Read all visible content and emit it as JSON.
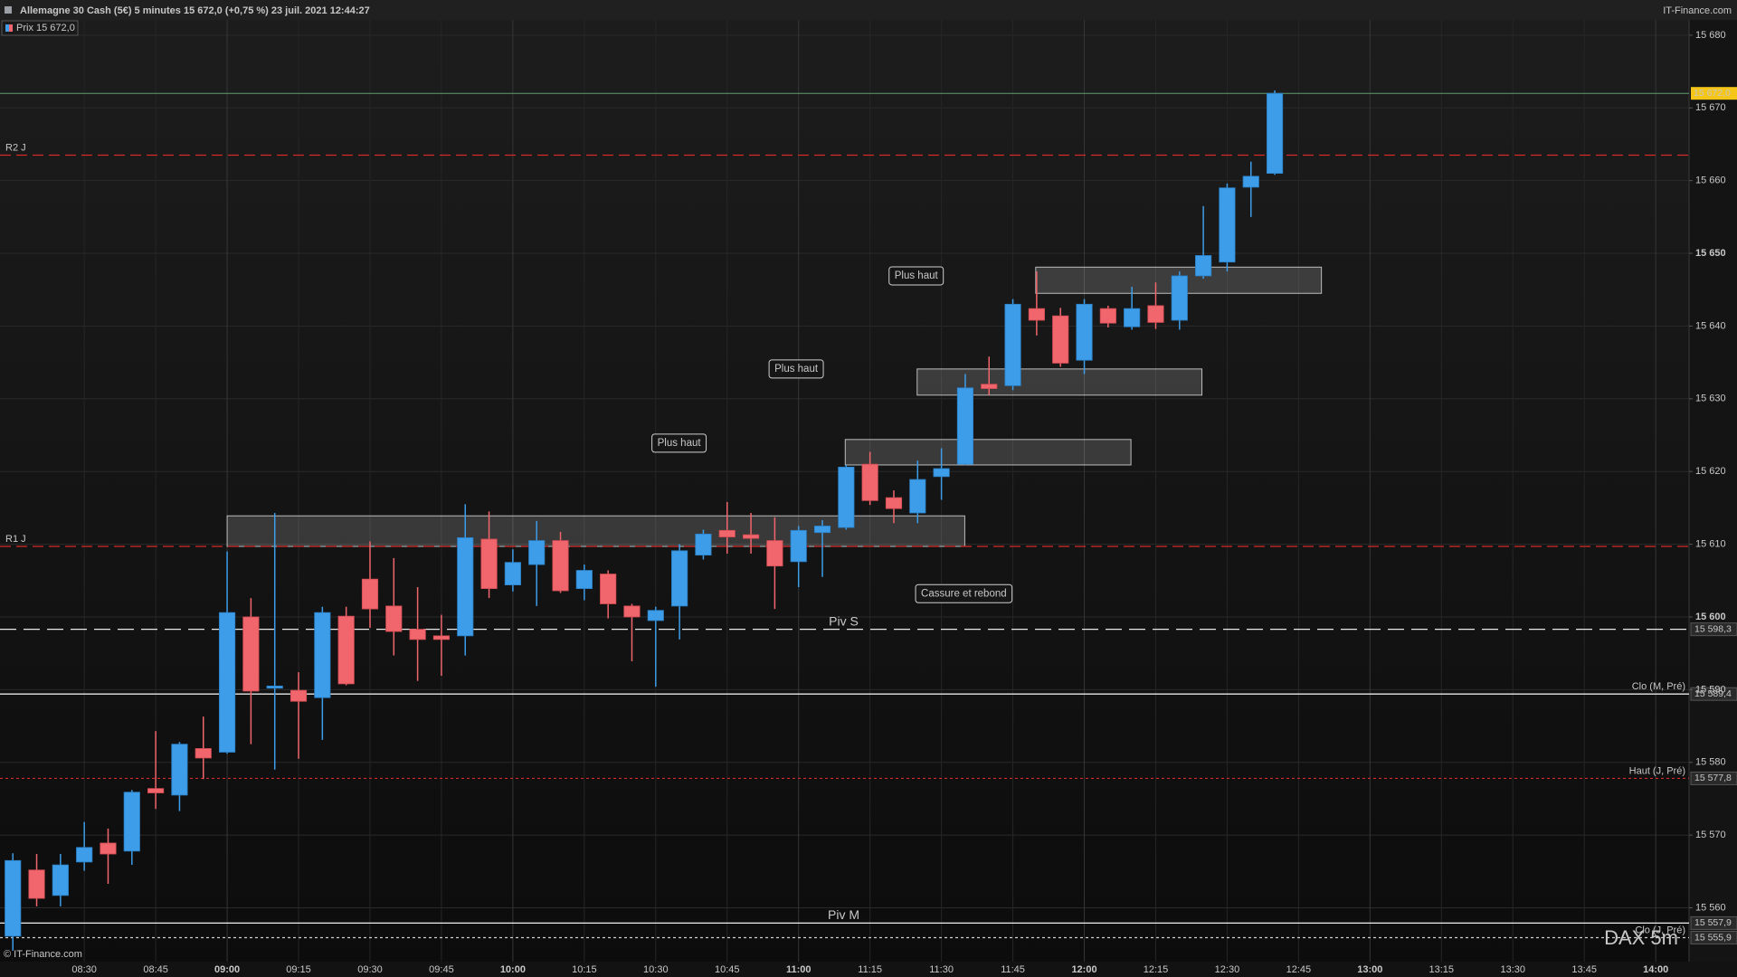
{
  "header": {
    "title": "Allemagne 30 Cash (5€) 5 minutes 15 672,0 (+0,75 %) 23 juil. 2021 12:44:27",
    "site": "IT-Finance.com"
  },
  "chart_data": {
    "type": "candlestick",
    "legend": "Prix 15 672,0",
    "copyright": "© IT-Finance.com",
    "watermark": "DAX 5m",
    "up_color": "#3d9de8",
    "down_color": "#f0666c",
    "grid": true,
    "xlim": [
      492.3,
      847
    ],
    "xticks": [
      {
        "value": 510,
        "label": "08:30"
      },
      {
        "value": 525,
        "label": "08:45"
      },
      {
        "value": 540,
        "label": "09:00"
      },
      {
        "value": 555,
        "label": "09:15"
      },
      {
        "value": 570,
        "label": "09:30"
      },
      {
        "value": 585,
        "label": "09:45"
      },
      {
        "value": 600,
        "label": "10:00"
      },
      {
        "value": 615,
        "label": "10:15"
      },
      {
        "value": 630,
        "label": "10:30"
      },
      {
        "value": 645,
        "label": "10:45"
      },
      {
        "value": 660,
        "label": "11:00"
      },
      {
        "value": 675,
        "label": "11:15"
      },
      {
        "value": 690,
        "label": "11:30"
      },
      {
        "value": 705,
        "label": "11:45"
      },
      {
        "value": 720,
        "label": "12:00"
      },
      {
        "value": 735,
        "label": "12:15"
      },
      {
        "value": 750,
        "label": "12:30"
      },
      {
        "value": 765,
        "label": "12:45"
      },
      {
        "value": 780,
        "label": "13:00"
      },
      {
        "value": 795,
        "label": "13:15"
      },
      {
        "value": 810,
        "label": "13:30"
      },
      {
        "value": 825,
        "label": "13:45"
      },
      {
        "value": 840,
        "label": "14:00"
      }
    ],
    "ylim": [
      15552.6,
      15682.1
    ],
    "yticks": [
      {
        "value": 15560,
        "label": "15 560"
      },
      {
        "value": 15570,
        "label": "15 570"
      },
      {
        "value": 15580,
        "label": "15 580"
      },
      {
        "value": 15590,
        "label": "15 590"
      },
      {
        "value": 15600,
        "label": "15 600"
      },
      {
        "value": 15610,
        "label": "15 610"
      },
      {
        "value": 15620,
        "label": "15 620"
      },
      {
        "value": 15630,
        "label": "15 630"
      },
      {
        "value": 15640,
        "label": "15 640"
      },
      {
        "value": 15650,
        "label": "15 650"
      },
      {
        "value": 15660,
        "label": "15 660"
      },
      {
        "value": 15670,
        "label": "15 670"
      },
      {
        "value": 15680,
        "label": "15 680"
      }
    ],
    "x": [
      495,
      500,
      505,
      510,
      515,
      520,
      525,
      530,
      535,
      540,
      545,
      550,
      555,
      560,
      565,
      570,
      575,
      580,
      585,
      590,
      595,
      600,
      605,
      610,
      615,
      620,
      625,
      630,
      635,
      640,
      645,
      650,
      655,
      660,
      665,
      670,
      675,
      680,
      685,
      690,
      695,
      700,
      705,
      710,
      715,
      720,
      725,
      730,
      735,
      740,
      745,
      750,
      755,
      760
    ],
    "open": [
      15556.1,
      15565.2,
      15561.7,
      15566.3,
      15568.9,
      15567.8,
      15576.4,
      15575.5,
      15581.9,
      15581.4,
      15600.0,
      15590.2,
      15589.9,
      15588.9,
      15600.1,
      15605.2,
      15601.5,
      15598.3,
      15597.4,
      15597.4,
      15610.7,
      15604.4,
      15607.2,
      15610.5,
      15603.9,
      15605.9,
      15601.5,
      15599.5,
      15601.5,
      15608.5,
      15611.9,
      15611.3,
      15610.5,
      15607.6,
      15611.6,
      15612.3,
      15621.0,
      15616.4,
      15614.3,
      15619.3,
      15621.0,
      15632.0,
      15631.8,
      15642.4,
      15641.4,
      15635.3,
      15642.4,
      15639.9,
      15642.8,
      15640.8,
      15646.9,
      15648.8,
      15659.1,
      15661.0
    ],
    "high": [
      15567.5,
      15567.4,
      15567.4,
      15571.8,
      15570.9,
      15576.2,
      15584.3,
      15582.8,
      15586.3,
      15609.0,
      15602.6,
      15614.3,
      15592.4,
      15601.4,
      15601.4,
      15610.4,
      15608.1,
      15604.1,
      15600.3,
      15615.5,
      15614.5,
      15609.3,
      15613.2,
      15611.7,
      15607.2,
      15606.4,
      15601.8,
      15601.4,
      15610.0,
      15612.0,
      15615.8,
      15614.3,
      15613.7,
      15612.5,
      15613.3,
      15620.9,
      15622.7,
      15617.4,
      15621.5,
      15623.2,
      15633.4,
      15635.8,
      15643.7,
      15647.5,
      15642.5,
      15643.7,
      15642.8,
      15645.4,
      15646.0,
      15647.5,
      15656.5,
      15659.6,
      15662.6,
      15672.4
    ],
    "low": [
      15554.1,
      15560.2,
      15560.2,
      15565.1,
      15563.3,
      15565.9,
      15573.6,
      15573.3,
      15577.7,
      15581.2,
      15582.5,
      15579.0,
      15580.5,
      15583.1,
      15590.6,
      15598.5,
      15594.7,
      15591.2,
      15591.9,
      15594.7,
      15602.6,
      15603.5,
      15601.5,
      15603.3,
      15602.3,
      15599.8,
      15593.9,
      15590.4,
      15596.9,
      15607.9,
      15608.7,
      15608.7,
      15601.1,
      15604.1,
      15605.5,
      15612.0,
      15615.4,
      15612.9,
      15612.9,
      15616.1,
      15620.9,
      15630.5,
      15631.2,
      15638.7,
      15634.4,
      15633.4,
      15639.8,
      15639.5,
      15639.6,
      15639.5,
      15646.5,
      15647.5,
      15655.0,
      15660.8
    ],
    "close": [
      15566.5,
      15561.3,
      15565.9,
      15568.3,
      15567.4,
      15575.9,
      15575.8,
      15582.5,
      15580.6,
      15600.6,
      15589.8,
      15590.5,
      15588.4,
      15600.6,
      15590.8,
      15601.1,
      15598.0,
      15596.9,
      15596.9,
      15610.9,
      15603.9,
      15607.5,
      15610.5,
      15603.6,
      15606.4,
      15601.8,
      15600.0,
      15600.9,
      15609.1,
      15611.4,
      15611.0,
      15610.8,
      15607.0,
      15611.9,
      15612.5,
      15620.6,
      15616.0,
      15614.9,
      15618.9,
      15620.4,
      15631.5,
      15631.4,
      15643.0,
      15640.8,
      15634.9,
      15643.0,
      15640.4,
      15642.4,
      15640.5,
      15646.9,
      15649.7,
      15659.0,
      15660.6,
      15672.0
    ],
    "last_price_label": "15 672,0",
    "levels": [
      {
        "name": "R2 J",
        "value": 15663.5,
        "color": "#d42a2a",
        "style": "dashed",
        "label_side": "left"
      },
      {
        "name": "R1 J",
        "value": 15609.7,
        "color": "#d42a2a",
        "style": "dashed",
        "label_side": "left"
      },
      {
        "name": "Piv S",
        "value": 15598.3,
        "value_label": "15 598,3",
        "color": "#e8e8e8",
        "style": "longdash",
        "label_side": "center"
      },
      {
        "name": "Clo (M, Pré)",
        "value": 15589.4,
        "value_label": "15 589,4",
        "color": "#e8e8e8",
        "style": "solid",
        "label_side": "right"
      },
      {
        "name": "Haut (J, Pré)",
        "value": 15577.8,
        "value_label": "15 577,8",
        "color": "#d42a2a",
        "style": "dotted",
        "label_side": "right"
      },
      {
        "name": "Piv M",
        "value": 15557.9,
        "value_label": "15 557,9",
        "color": "#f0f0f0",
        "style": "solid",
        "label_side": "center"
      },
      {
        "name": "Clo (J, Pré)",
        "value": 15555.9,
        "value_label": "15 555,9",
        "color": "#d0d0d0",
        "style": "dotted",
        "label_side": "right"
      }
    ],
    "zones": [
      {
        "x": [
          540,
          694.9
        ],
        "y": [
          15609.7,
          15613.9
        ]
      },
      {
        "x": [
          669.8,
          729.8
        ],
        "y": [
          15620.9,
          15624.4
        ]
      },
      {
        "x": [
          684.9,
          744.7
        ],
        "y": [
          15630.5,
          15634.1
        ]
      },
      {
        "x": [
          709.8,
          769.8
        ],
        "y": [
          15644.5,
          15648.1
        ]
      }
    ],
    "annotations": [
      {
        "text": "Plus haut",
        "x": 634.9,
        "y": 15623.9
      },
      {
        "text": "Plus haut",
        "x": 659.5,
        "y": 15634.1
      },
      {
        "text": "Plus haut",
        "x": 684.7,
        "y": 15646.9
      },
      {
        "text": "Cassure et rebond",
        "x": 694.7,
        "y": 15603.2
      }
    ]
  }
}
